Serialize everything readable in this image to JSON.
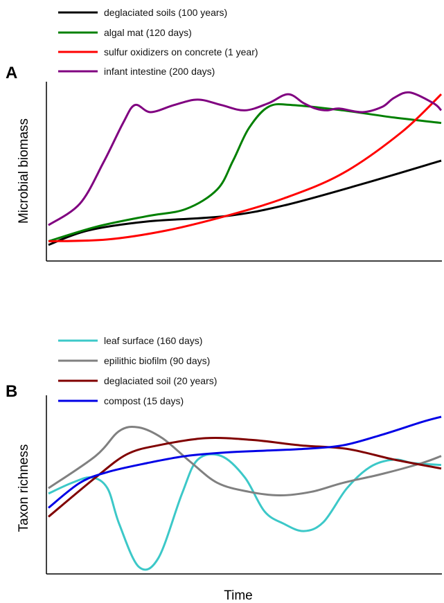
{
  "chart_data": [
    {
      "type": "line",
      "panel_label": "A",
      "xlabel": "",
      "ylabel": "Microbial biomass",
      "axes": {
        "ticks": false,
        "grid": false
      },
      "legend": {
        "placement": "top-left, above plot"
      },
      "series": [
        {
          "name": "deglaciated soils (100 years)",
          "color": "#000000",
          "x": [
            0,
            10,
            25,
            45,
            60,
            80,
            100
          ],
          "y": [
            0.09,
            0.17,
            0.22,
            0.25,
            0.31,
            0.43,
            0.56
          ]
        },
        {
          "name": "algal mat (120 days)",
          "color": "#008000",
          "x": [
            0,
            12,
            25,
            35,
            43,
            47,
            51,
            56,
            62,
            75,
            88,
            100
          ],
          "y": [
            0.11,
            0.19,
            0.25,
            0.29,
            0.4,
            0.56,
            0.74,
            0.86,
            0.87,
            0.84,
            0.8,
            0.77
          ]
        },
        {
          "name": "sulfur oxidizers on concrete (1 year)",
          "color": "#ff0000",
          "x": [
            0,
            15,
            30,
            45,
            60,
            75,
            90,
            100
          ],
          "y": [
            0.11,
            0.12,
            0.17,
            0.25,
            0.35,
            0.49,
            0.72,
            0.93
          ]
        },
        {
          "name": "infant intestine (200 days)",
          "color": "#800080",
          "x": [
            0,
            8,
            14,
            19,
            22,
            26,
            32,
            38,
            44,
            50,
            56,
            61,
            65,
            68,
            71,
            74,
            80,
            85,
            88,
            92,
            98,
            100
          ],
          "y": [
            0.2,
            0.32,
            0.55,
            0.77,
            0.87,
            0.83,
            0.87,
            0.9,
            0.87,
            0.84,
            0.88,
            0.93,
            0.88,
            0.85,
            0.84,
            0.85,
            0.83,
            0.86,
            0.91,
            0.94,
            0.88,
            0.84
          ]
        }
      ]
    },
    {
      "type": "line",
      "panel_label": "B",
      "xlabel": "Time",
      "ylabel": "Taxon richness",
      "axes": {
        "ticks": false,
        "grid": false
      },
      "legend": {
        "placement": "top-left, above plot"
      },
      "series": [
        {
          "name": "leaf surface (160 days)",
          "color": "#3cc8c8",
          "x": [
            0,
            6,
            11,
            15,
            18,
            23,
            28,
            34,
            38,
            44,
            50,
            55,
            60,
            65,
            70,
            76,
            82,
            88,
            93,
            100
          ],
          "y": [
            0.45,
            0.51,
            0.54,
            0.48,
            0.28,
            0.04,
            0.09,
            0.45,
            0.64,
            0.66,
            0.54,
            0.35,
            0.28,
            0.24,
            0.29,
            0.48,
            0.6,
            0.64,
            0.62,
            0.61
          ]
        },
        {
          "name": "epilithic biofilm (90 days)",
          "color": "#808080",
          "x": [
            0,
            12,
            18,
            23,
            29,
            36,
            43,
            51,
            59,
            67,
            75,
            85,
            95,
            100
          ],
          "y": [
            0.48,
            0.66,
            0.8,
            0.82,
            0.76,
            0.63,
            0.51,
            0.46,
            0.44,
            0.46,
            0.51,
            0.56,
            0.62,
            0.66
          ]
        },
        {
          "name": "deglaciated soil  (20 years)",
          "color": "#800000",
          "x": [
            0,
            12,
            20,
            28,
            40,
            52,
            64,
            76,
            88,
            100
          ],
          "y": [
            0.32,
            0.54,
            0.67,
            0.72,
            0.76,
            0.75,
            0.72,
            0.7,
            0.64,
            0.59
          ]
        },
        {
          "name": "compost (15 days)",
          "color": "#0000e6",
          "x": [
            0,
            8,
            15,
            25,
            35,
            45,
            55,
            65,
            75,
            85,
            95,
            100
          ],
          "y": [
            0.37,
            0.51,
            0.57,
            0.62,
            0.66,
            0.68,
            0.69,
            0.7,
            0.72,
            0.78,
            0.85,
            0.88
          ]
        }
      ]
    }
  ]
}
